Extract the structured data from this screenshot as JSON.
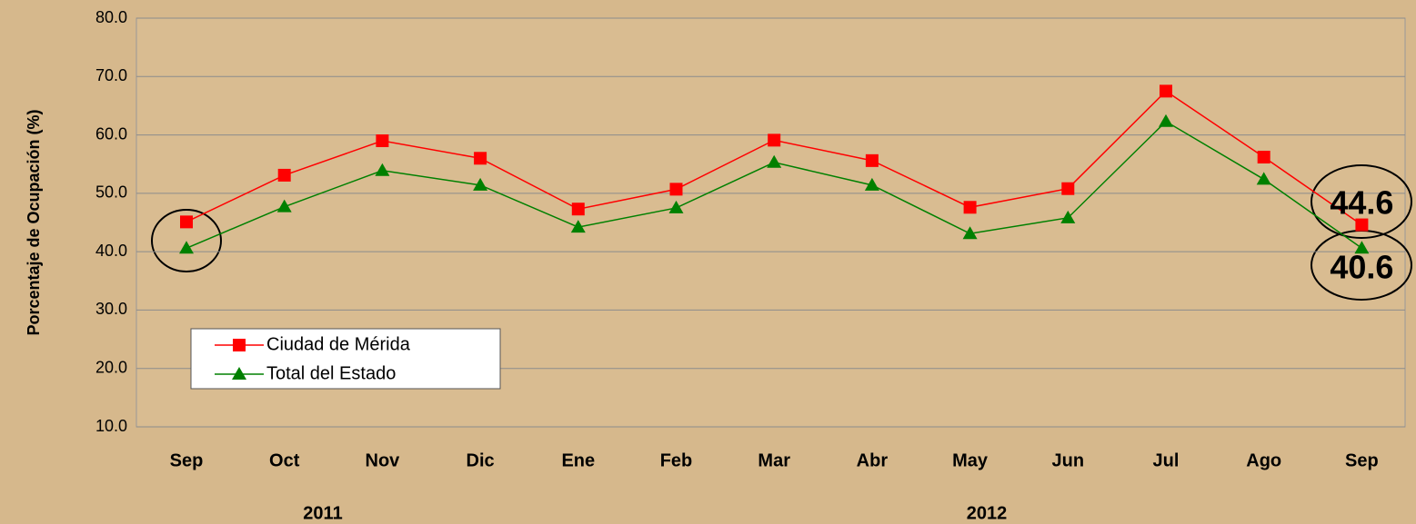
{
  "chart_data": {
    "type": "line",
    "y_label": "Porcentaje de Ocupación (%)",
    "categories": [
      "Sep",
      "Oct",
      "Nov",
      "Dic",
      "Ene",
      "Feb",
      "Mar",
      "Abr",
      "May",
      "Jun",
      "Jul",
      "Ago",
      "Sep"
    ],
    "annotations": [
      "2011",
      "2012"
    ],
    "series": [
      {
        "name": "Ciudad de Mérida",
        "color": "#ff0000",
        "marker": "square",
        "values": [
          45.1,
          53.1,
          59.0,
          56.0,
          47.3,
          50.7,
          59.1,
          55.6,
          47.6,
          50.8,
          67.5,
          56.2,
          44.6
        ]
      },
      {
        "name": "Total del Estado",
        "color": "#008000",
        "marker": "triangle",
        "values": [
          40.6,
          47.7,
          53.9,
          51.4,
          44.2,
          47.5,
          55.3,
          51.4,
          43.1,
          45.8,
          62.3,
          52.4,
          40.6
        ]
      }
    ],
    "ylim": [
      10,
      80
    ],
    "yticks": [
      {
        "value": 10,
        "label": "10.0"
      },
      {
        "value": 20,
        "label": "20.0"
      },
      {
        "value": 30,
        "label": "30.0"
      },
      {
        "value": 40,
        "label": "40.0"
      },
      {
        "value": 50,
        "label": "50.0"
      },
      {
        "value": 60,
        "label": "60.0"
      },
      {
        "value": 70,
        "label": "70.0"
      },
      {
        "value": 80,
        "label": "80.0"
      }
    ],
    "grid": true
  }
}
